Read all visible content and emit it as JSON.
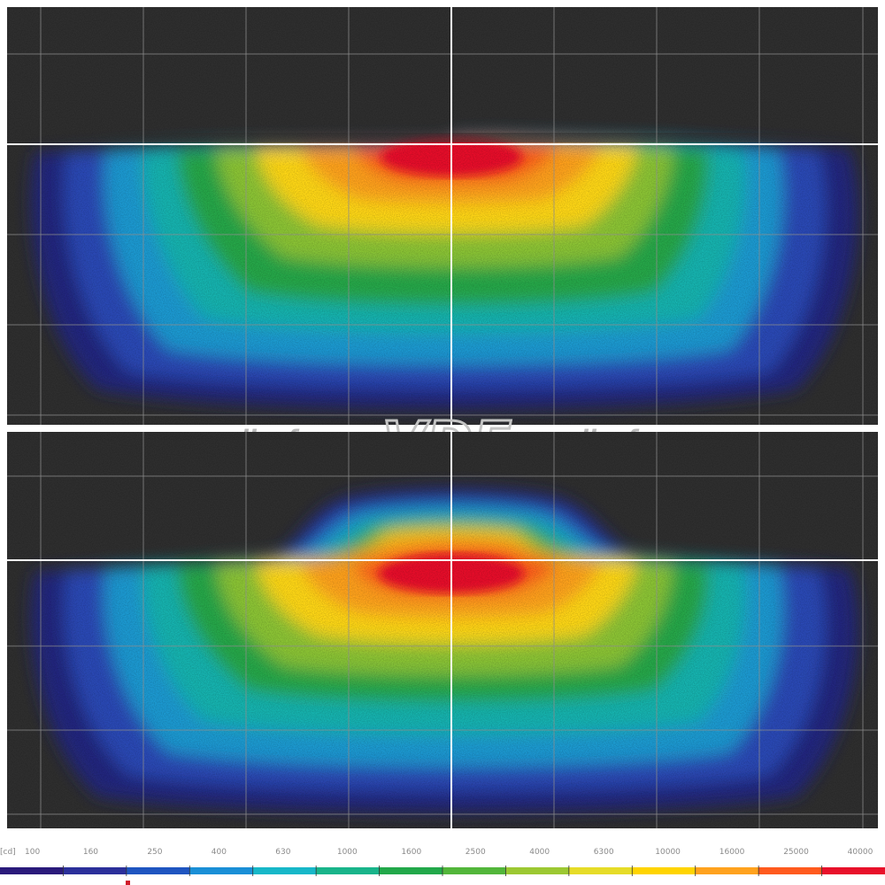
{
  "watermark": {
    "left_text": "vsedlyafar.ru",
    "logo": "VDF",
    "right_text": "vsedlyafar.ru"
  },
  "chart_data": [
    {
      "type": "heatmap",
      "title": "",
      "xlabel": "",
      "ylabel": "",
      "grid": true,
      "beam": "low-beam",
      "cutoff": "flat cut-off line with small step right of center",
      "hotspot": "red core just below cut-off, centered slightly right of vertical axis"
    },
    {
      "type": "heatmap",
      "title": "",
      "xlabel": "",
      "ylabel": "",
      "grid": true,
      "beam": "low-beam with raised center",
      "cutoff": "wide raised trapezoid above horizontal line",
      "hotspot": "red core just below horizontal line, centered slightly right of vertical axis"
    }
  ],
  "color_scale": {
    "unit": "[cd]",
    "ticks": [
      "100",
      "160",
      "250",
      "400",
      "630",
      "1000",
      "1600",
      "2500",
      "4000",
      "6300",
      "10000",
      "16000",
      "25000",
      "40000"
    ],
    "colors": [
      "#2a1a7a",
      "#2b2f9a",
      "#1f55c0",
      "#1a8fd6",
      "#17b7c8",
      "#19b48a",
      "#22a84a",
      "#52b63a",
      "#9cc832",
      "#e6dc28",
      "#ffd400",
      "#ffa21e",
      "#ff5a1e",
      "#e8102a"
    ]
  }
}
